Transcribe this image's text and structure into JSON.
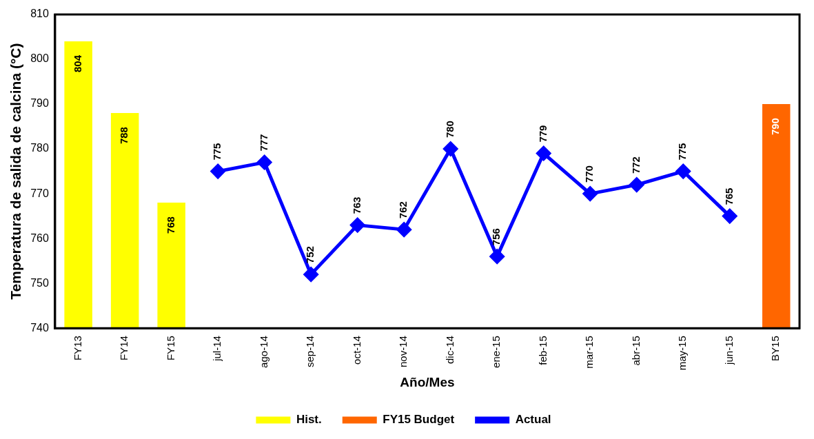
{
  "chart_data": {
    "type": "bar",
    "xlabel": "Año/Mes",
    "ylabel": "Temperatura de salida de calcina (°C)",
    "categories": [
      "FY13",
      "FY14",
      "FY15",
      "jul-14",
      "ago-14",
      "sep-14",
      "oct-14",
      "nov-14",
      "dic-14",
      "ene-15",
      "feb-15",
      "mar-15",
      "abr-15",
      "may-15",
      "jun-15",
      "BY15"
    ],
    "series": [
      {
        "name": "Hist.",
        "color": "#ffff00",
        "values": [
          804,
          788,
          768,
          null,
          null,
          null,
          null,
          null,
          null,
          null,
          null,
          null,
          null,
          null,
          null,
          null
        ]
      },
      {
        "name": "FY15 Budget",
        "color": "#ff6600",
        "values": [
          null,
          null,
          null,
          null,
          null,
          null,
          null,
          null,
          null,
          null,
          null,
          null,
          null,
          null,
          null,
          790
        ]
      },
      {
        "name": "Actual",
        "type": "line",
        "color": "#0000ff",
        "values": [
          null,
          null,
          null,
          775,
          777,
          752,
          763,
          762,
          780,
          756,
          779,
          770,
          772,
          775,
          765,
          null
        ]
      }
    ],
    "ylim": [
      740,
      810
    ],
    "yticks": [
      740,
      750,
      760,
      770,
      780,
      790,
      800,
      810
    ],
    "grid": false,
    "legend": "bottom",
    "marker": "diamond",
    "line_style": "solid",
    "data_labels": true
  }
}
